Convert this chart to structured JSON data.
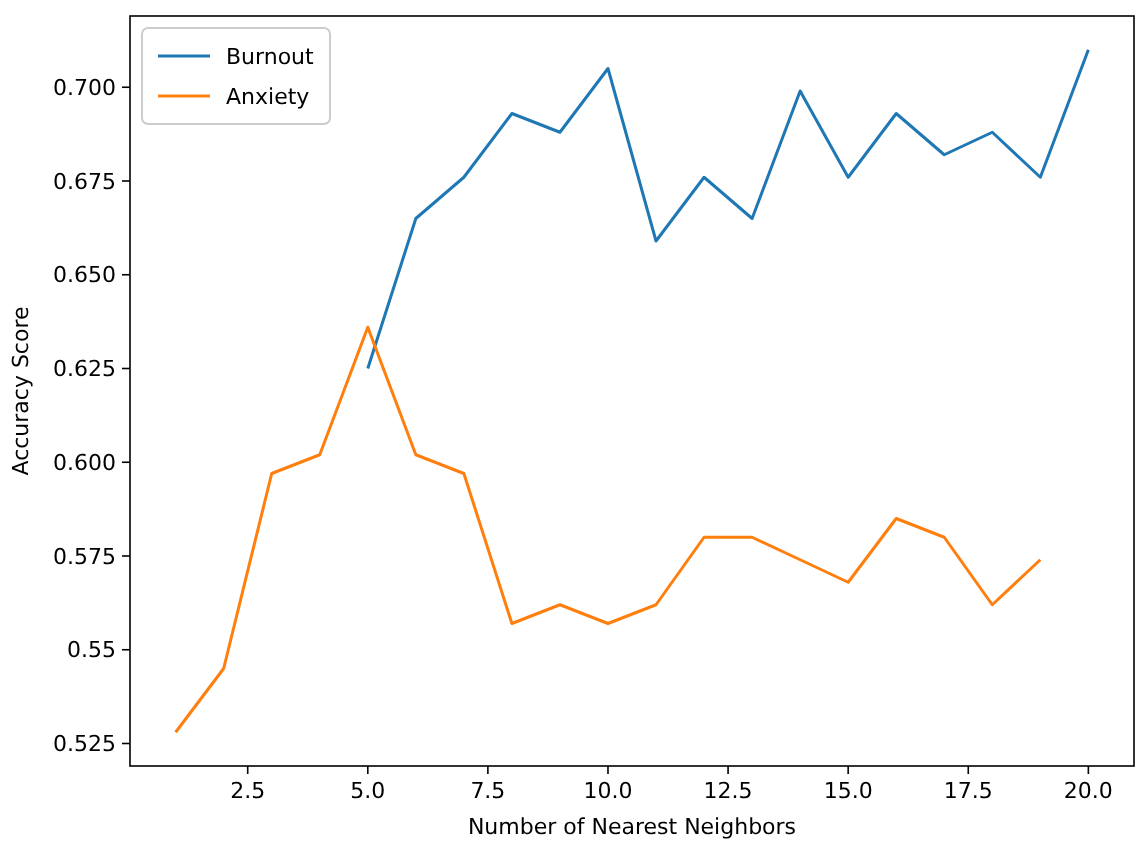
{
  "chart_data": {
    "type": "line",
    "xlabel": "Number of Nearest Neighbors",
    "ylabel": "Accuracy Score",
    "legend": "top left",
    "grid": false,
    "xlim": [
      0.05,
      20.95
    ],
    "ylim": [
      0.519,
      0.719
    ],
    "xticks": [
      {
        "value": 2.5,
        "label": "2.5"
      },
      {
        "value": 5,
        "label": "5.0"
      },
      {
        "value": 7.5,
        "label": "7.5"
      },
      {
        "value": 10,
        "label": "10.0"
      },
      {
        "value": 12.5,
        "label": "12.5"
      },
      {
        "value": 15,
        "label": "15.0"
      },
      {
        "value": 17.5,
        "label": "17.5"
      },
      {
        "value": 20,
        "label": "20.0"
      }
    ],
    "yticks": [
      0.525,
      0.55,
      {
        "value": 0.575,
        "label": "0.575"
      },
      {
        "value": 0.6,
        "label": "0.600"
      },
      {
        "value": 0.625,
        "label": "0.625"
      },
      {
        "value": 0.65,
        "label": "0.650"
      },
      {
        "value": 0.675,
        "label": "0.675"
      },
      {
        "value": 0.7,
        "label": "0.700"
      }
    ],
    "series": [
      {
        "name": "Burnout",
        "color": "#1f77b4",
        "x": [
          5,
          6,
          7,
          8,
          9,
          10,
          11,
          12,
          13,
          14,
          15,
          16,
          17,
          18,
          19,
          20
        ],
        "values": [
          0.625,
          0.665,
          0.676,
          0.693,
          0.688,
          0.705,
          0.659,
          0.676,
          0.665,
          0.699,
          0.676,
          0.693,
          0.682,
          0.688,
          0.676,
          0.71
        ]
      },
      {
        "name": "Anxiety",
        "color": "#ff7f0e",
        "x": [
          1,
          2,
          3,
          4,
          5,
          6,
          7,
          8,
          9,
          10,
          11,
          12,
          13,
          14,
          15,
          16,
          17,
          18,
          19
        ],
        "values": [
          0.528,
          0.545,
          0.597,
          0.602,
          0.636,
          0.602,
          0.597,
          0.557,
          0.562,
          0.557,
          0.562,
          0.58,
          0.58,
          0.574,
          0.568,
          0.585,
          0.58,
          0.562,
          0.574
        ]
      }
    ]
  }
}
